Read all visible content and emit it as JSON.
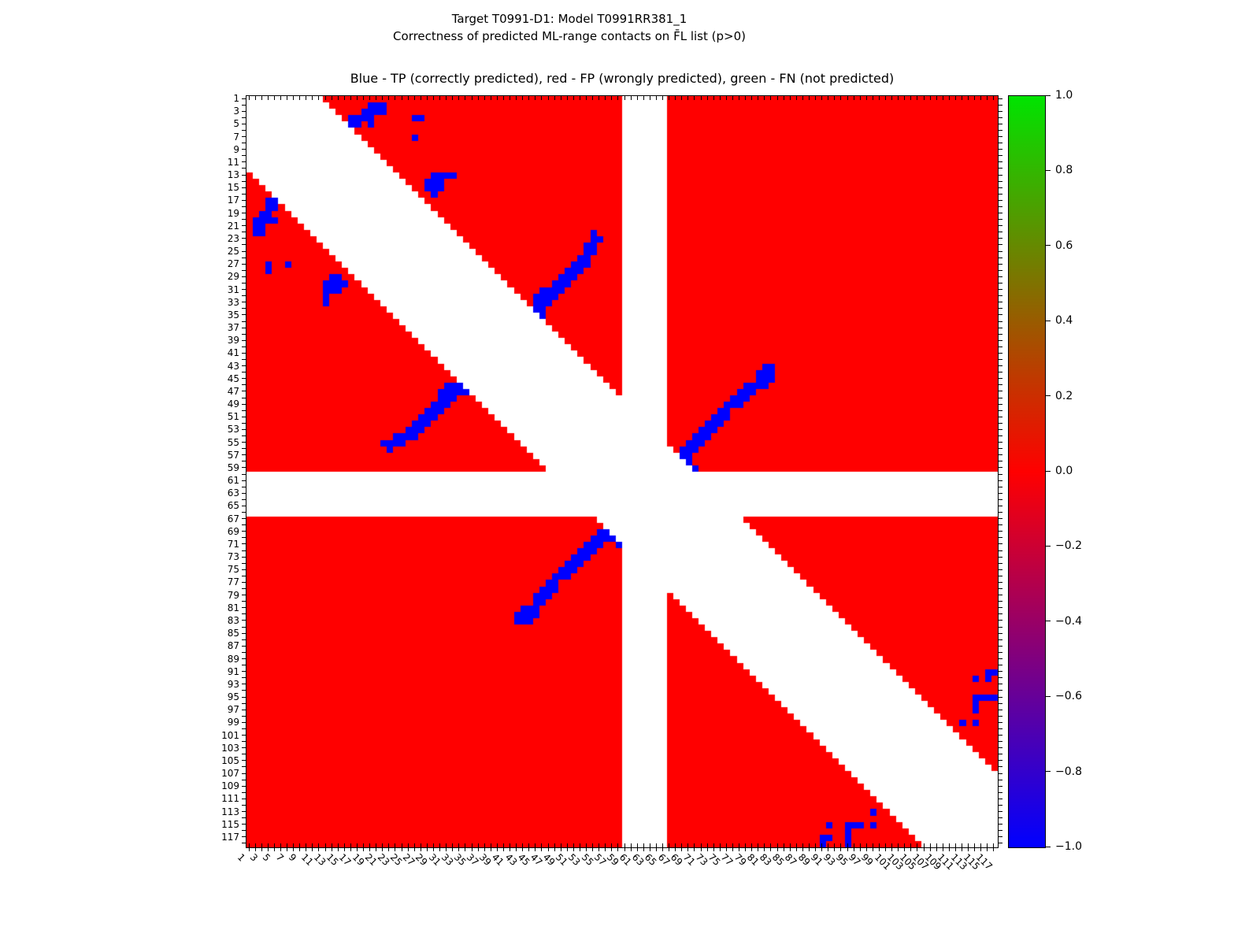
{
  "header": {
    "suptitle_line1": "Target T0991-D1: Model T0991RR381_1",
    "suptitle_line2": "Correctness of predicted ML-range contacts on F̄L list (p>0)"
  },
  "chart_data": {
    "type": "heatmap",
    "title": "Blue - TP (correctly predicted), red - FP (wrongly predicted), green - FN (not predicted)",
    "legend": {
      "blue": "TP (correctly predicted)",
      "red": "FP (wrongly predicted)",
      "green": "FN (not predicted)"
    },
    "n_residues": 118,
    "axis_range": [
      1,
      118
    ],
    "grid": false,
    "x_tick_labels": [
      1,
      3,
      5,
      7,
      9,
      11,
      13,
      15,
      17,
      19,
      21,
      23,
      25,
      27,
      29,
      31,
      33,
      35,
      37,
      39,
      41,
      43,
      45,
      47,
      49,
      51,
      53,
      55,
      57,
      59,
      61,
      63,
      65,
      67,
      69,
      71,
      73,
      75,
      77,
      79,
      81,
      83,
      85,
      87,
      89,
      91,
      93,
      95,
      97,
      99,
      101,
      103,
      105,
      107,
      109,
      111,
      113,
      115,
      117
    ],
    "y_tick_labels": [
      1,
      3,
      5,
      7,
      9,
      11,
      13,
      15,
      17,
      19,
      21,
      23,
      25,
      27,
      29,
      31,
      33,
      35,
      37,
      39,
      41,
      43,
      45,
      47,
      49,
      51,
      53,
      55,
      57,
      59,
      61,
      63,
      65,
      67,
      69,
      71,
      73,
      75,
      77,
      79,
      81,
      83,
      85,
      87,
      89,
      91,
      93,
      95,
      97,
      99,
      101,
      103,
      105,
      107,
      109,
      111,
      113,
      115,
      117
    ],
    "colors": {
      "tp_blue": "#0000ff",
      "fp_red": "#ff0000",
      "fn_green": "#00e400",
      "empty_white": "#ffffff"
    },
    "diagonal_exclusion_halfwidth": 11,
    "missing_residue_band": {
      "start": 60,
      "end": 66
    },
    "symmetric": true,
    "tp_cells_upper_triangle": [
      [
        2,
        20
      ],
      [
        2,
        21
      ],
      [
        2,
        22
      ],
      [
        3,
        19
      ],
      [
        3,
        20
      ],
      [
        3,
        21
      ],
      [
        3,
        22
      ],
      [
        4,
        17
      ],
      [
        4,
        18
      ],
      [
        4,
        19
      ],
      [
        4,
        20
      ],
      [
        4,
        27
      ],
      [
        4,
        28
      ],
      [
        5,
        17
      ],
      [
        5,
        18
      ],
      [
        5,
        20
      ],
      [
        7,
        27
      ],
      [
        13,
        30
      ],
      [
        13,
        31
      ],
      [
        13,
        32
      ],
      [
        13,
        33
      ],
      [
        14,
        29
      ],
      [
        14,
        30
      ],
      [
        14,
        31
      ],
      [
        15,
        29
      ],
      [
        15,
        30
      ],
      [
        15,
        31
      ],
      [
        16,
        30
      ],
      [
        22,
        55
      ],
      [
        23,
        55
      ],
      [
        23,
        56
      ],
      [
        24,
        54
      ],
      [
        24,
        55
      ],
      [
        25,
        54
      ],
      [
        25,
        55
      ],
      [
        26,
        53
      ],
      [
        26,
        54
      ],
      [
        27,
        52
      ],
      [
        27,
        53
      ],
      [
        27,
        54
      ],
      [
        28,
        51
      ],
      [
        28,
        52
      ],
      [
        28,
        53
      ],
      [
        29,
        50
      ],
      [
        29,
        51
      ],
      [
        29,
        52
      ],
      [
        30,
        49
      ],
      [
        30,
        50
      ],
      [
        30,
        51
      ],
      [
        31,
        47
      ],
      [
        31,
        48
      ],
      [
        31,
        49
      ],
      [
        31,
        50
      ],
      [
        32,
        46
      ],
      [
        32,
        47
      ],
      [
        32,
        48
      ],
      [
        32,
        49
      ],
      [
        33,
        46
      ],
      [
        33,
        47
      ],
      [
        33,
        48
      ],
      [
        34,
        45
      ],
      [
        34,
        46
      ],
      [
        34,
        47
      ],
      [
        35,
        46
      ],
      [
        35,
        47
      ],
      [
        43,
        82
      ],
      [
        43,
        83
      ],
      [
        44,
        81
      ],
      [
        44,
        82
      ],
      [
        44,
        83
      ],
      [
        45,
        81
      ],
      [
        45,
        82
      ],
      [
        45,
        83
      ],
      [
        46,
        79
      ],
      [
        46,
        80
      ],
      [
        46,
        81
      ],
      [
        46,
        82
      ],
      [
        47,
        78
      ],
      [
        47,
        79
      ],
      [
        47,
        80
      ],
      [
        48,
        77
      ],
      [
        48,
        78
      ],
      [
        48,
        79
      ],
      [
        49,
        76
      ],
      [
        49,
        77
      ],
      [
        49,
        78
      ],
      [
        50,
        75
      ],
      [
        50,
        76
      ],
      [
        51,
        74
      ],
      [
        51,
        75
      ],
      [
        51,
        76
      ],
      [
        52,
        73
      ],
      [
        52,
        74
      ],
      [
        52,
        75
      ],
      [
        53,
        72
      ],
      [
        53,
        73
      ],
      [
        53,
        74
      ],
      [
        54,
        71
      ],
      [
        54,
        72
      ],
      [
        54,
        73
      ],
      [
        55,
        70
      ],
      [
        55,
        71
      ],
      [
        55,
        72
      ],
      [
        56,
        69
      ],
      [
        56,
        70
      ],
      [
        56,
        71
      ],
      [
        57,
        69
      ],
      [
        57,
        70
      ],
      [
        58,
        70
      ],
      [
        59,
        71
      ],
      [
        91,
        117
      ],
      [
        91,
        118
      ],
      [
        92,
        115
      ],
      [
        92,
        117
      ],
      [
        95,
        115
      ],
      [
        95,
        116
      ],
      [
        95,
        117
      ],
      [
        95,
        118
      ],
      [
        96,
        115
      ],
      [
        97,
        115
      ],
      [
        99,
        113
      ],
      [
        99,
        115
      ]
    ],
    "colorbar": {
      "min": -1.0,
      "max": 1.0,
      "tick_labels": [
        "1.0",
        "0.8",
        "0.6",
        "0.4",
        "0.2",
        "0.0",
        "−0.2",
        "−0.4",
        "−0.6",
        "−0.8",
        "−1.0"
      ],
      "gradient_top_to_bottom": [
        "#00e400",
        "#ff0000",
        "#0000ff"
      ]
    }
  }
}
